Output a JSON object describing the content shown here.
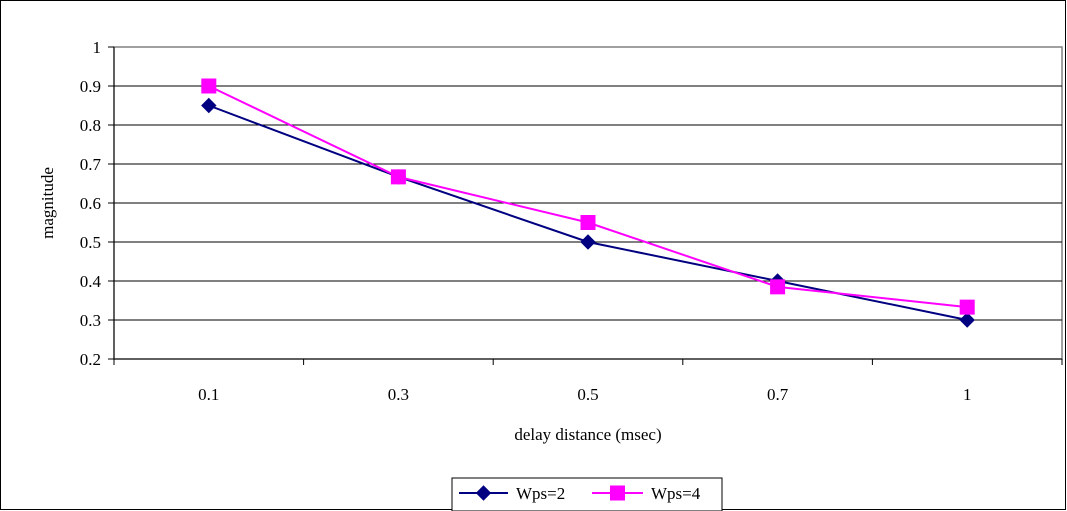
{
  "chart_data": {
    "type": "line",
    "title": "",
    "xlabel": "delay distance (msec)",
    "ylabel": "magnitude",
    "categories": [
      "0.1",
      "0.3",
      "0.5",
      "0.7",
      "1"
    ],
    "ylim": [
      0.2,
      1
    ],
    "yticks": [
      "0.2",
      "0.3",
      "0.4",
      "0.5",
      "0.6",
      "0.7",
      "0.8",
      "0.9",
      "1"
    ],
    "grid": true,
    "legend_position": "bottom",
    "series": [
      {
        "name": "Wps=2",
        "values": [
          0.85,
          0.667,
          0.5,
          0.4,
          0.3
        ],
        "color": "#000080",
        "marker": "diamond"
      },
      {
        "name": "Wps=4",
        "values": [
          0.9,
          0.667,
          0.55,
          0.385,
          0.333
        ],
        "color": "#FF00FF",
        "marker": "square"
      }
    ]
  }
}
